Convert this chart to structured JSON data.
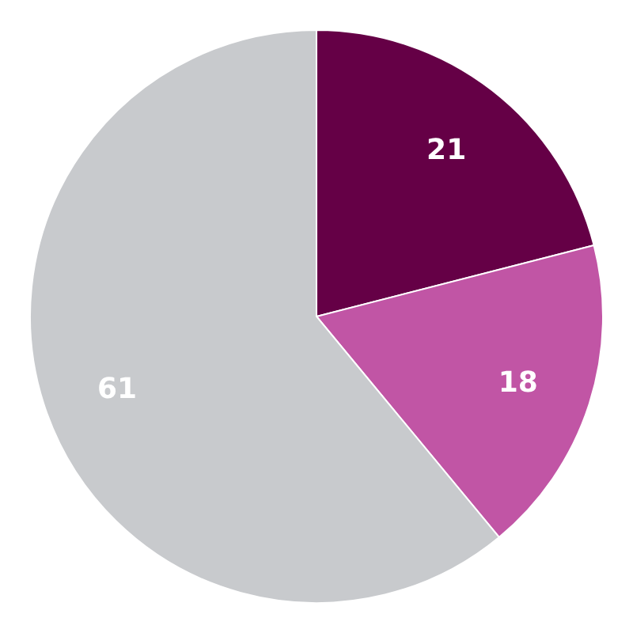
{
  "chart_data": {
    "type": "pie",
    "categories": [
      null,
      null,
      null
    ],
    "values": [
      21,
      18,
      61
    ],
    "colors": [
      "#650046",
      "#c155a5",
      "#c8cacd"
    ],
    "data_labels": true
  }
}
